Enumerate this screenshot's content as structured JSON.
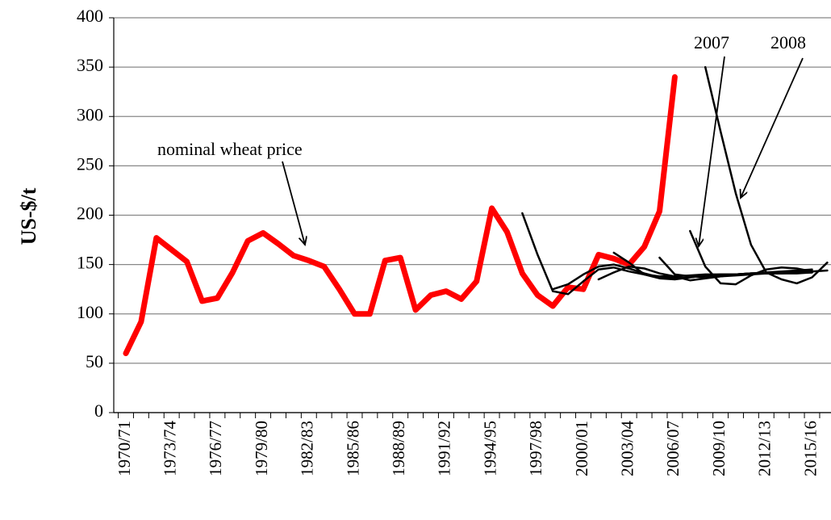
{
  "chart_data": {
    "type": "line",
    "y_label": "US-$/t",
    "annotations": [
      "nominal wheat price",
      "2007",
      "2008"
    ],
    "categories": [
      "1970/71",
      null,
      null,
      "1973/74",
      null,
      null,
      "1976/77",
      null,
      null,
      "1979/80",
      null,
      null,
      "1982/83",
      null,
      null,
      "1985/86",
      null,
      null,
      "1988/89",
      null,
      null,
      "1991/92",
      null,
      null,
      "1994/95",
      null,
      null,
      "1997/98",
      null,
      null,
      "2000/01",
      null,
      null,
      "2003/04",
      null,
      null,
      "2006/07",
      null,
      null,
      "2009/10",
      null,
      null,
      "2012/13",
      null,
      null,
      "2015/16",
      null
    ],
    "series": [
      {
        "color": "#ff0000",
        "width": 7,
        "values": [
          60,
          92,
          177,
          165,
          153,
          113,
          116,
          142,
          174,
          182,
          171,
          159,
          154,
          148,
          125,
          100,
          100,
          154,
          157,
          104,
          119,
          123,
          115,
          133,
          207,
          183,
          141,
          119,
          108,
          127,
          125,
          160,
          156,
          150,
          168,
          204,
          340,
          null,
          null,
          null,
          null,
          null,
          null,
          null,
          null,
          null,
          null
        ]
      },
      {
        "color": "#000000",
        "width": 2.5,
        "values": [
          null,
          null,
          null,
          null,
          null,
          null,
          null,
          null,
          null,
          null,
          null,
          null,
          null,
          null,
          null,
          null,
          null,
          null,
          null,
          null,
          null,
          null,
          null,
          null,
          null,
          null,
          202,
          160,
          123,
          120,
          133,
          145,
          147,
          143,
          140,
          138,
          138,
          139,
          140,
          140,
          140,
          141,
          141,
          141,
          141,
          142,
          null
        ]
      },
      {
        "color": "#000000",
        "width": 2.5,
        "values": [
          null,
          null,
          null,
          null,
          null,
          null,
          null,
          null,
          null,
          null,
          null,
          null,
          null,
          null,
          null,
          null,
          null,
          null,
          null,
          null,
          null,
          null,
          null,
          null,
          null,
          null,
          null,
          null,
          125,
          130,
          140,
          148,
          150,
          146,
          141,
          137,
          136,
          137,
          139,
          140,
          140,
          141,
          141,
          142,
          142,
          142,
          null
        ]
      },
      {
        "color": "#000000",
        "width": 2.5,
        "values": [
          null,
          null,
          null,
          null,
          null,
          null,
          null,
          null,
          null,
          null,
          null,
          null,
          null,
          null,
          null,
          null,
          null,
          null,
          null,
          null,
          null,
          null,
          null,
          null,
          null,
          null,
          null,
          null,
          null,
          null,
          null,
          135,
          142,
          148,
          146,
          141,
          138,
          134,
          136,
          138,
          139,
          140,
          141,
          141,
          142,
          142,
          null
        ]
      },
      {
        "color": "#000000",
        "width": 2.5,
        "values": [
          null,
          null,
          null,
          null,
          null,
          null,
          null,
          null,
          null,
          null,
          null,
          null,
          null,
          null,
          null,
          null,
          null,
          null,
          null,
          null,
          null,
          null,
          null,
          null,
          null,
          null,
          null,
          null,
          null,
          null,
          null,
          null,
          162,
          152,
          140,
          136,
          135,
          137,
          139,
          139,
          140,
          141,
          141,
          142,
          143,
          144,
          null
        ]
      },
      {
        "color": "#000000",
        "width": 2.5,
        "values": [
          null,
          null,
          null,
          null,
          null,
          null,
          null,
          null,
          null,
          null,
          null,
          null,
          null,
          null,
          null,
          null,
          null,
          null,
          null,
          null,
          null,
          null,
          null,
          null,
          null,
          null,
          null,
          null,
          null,
          null,
          null,
          null,
          null,
          null,
          null,
          157,
          140,
          138,
          137,
          138,
          140,
          141,
          142,
          143,
          144,
          145,
          null
        ]
      },
      {
        "color": "#000000",
        "width": 2.5,
        "values": [
          null,
          null,
          null,
          null,
          null,
          null,
          null,
          null,
          null,
          null,
          null,
          null,
          null,
          null,
          null,
          null,
          null,
          null,
          null,
          null,
          null,
          null,
          null,
          null,
          null,
          null,
          null,
          null,
          null,
          null,
          null,
          null,
          null,
          null,
          null,
          null,
          null,
          184,
          148,
          131,
          130,
          139,
          145,
          147,
          146,
          143,
          144
        ]
      },
      {
        "color": "#000000",
        "width": 2.5,
        "values": [
          null,
          null,
          null,
          null,
          null,
          null,
          null,
          null,
          null,
          null,
          null,
          null,
          null,
          null,
          null,
          null,
          null,
          null,
          null,
          null,
          null,
          null,
          null,
          null,
          null,
          null,
          null,
          null,
          null,
          null,
          null,
          null,
          null,
          null,
          null,
          null,
          null,
          null,
          350,
          285,
          222,
          170,
          142,
          135,
          131,
          137,
          152
        ]
      }
    ],
    "ylim": [
      0,
      400
    ],
    "yticks": [
      0,
      50,
      100,
      150,
      200,
      250,
      300,
      350,
      400
    ],
    "grid": true
  }
}
